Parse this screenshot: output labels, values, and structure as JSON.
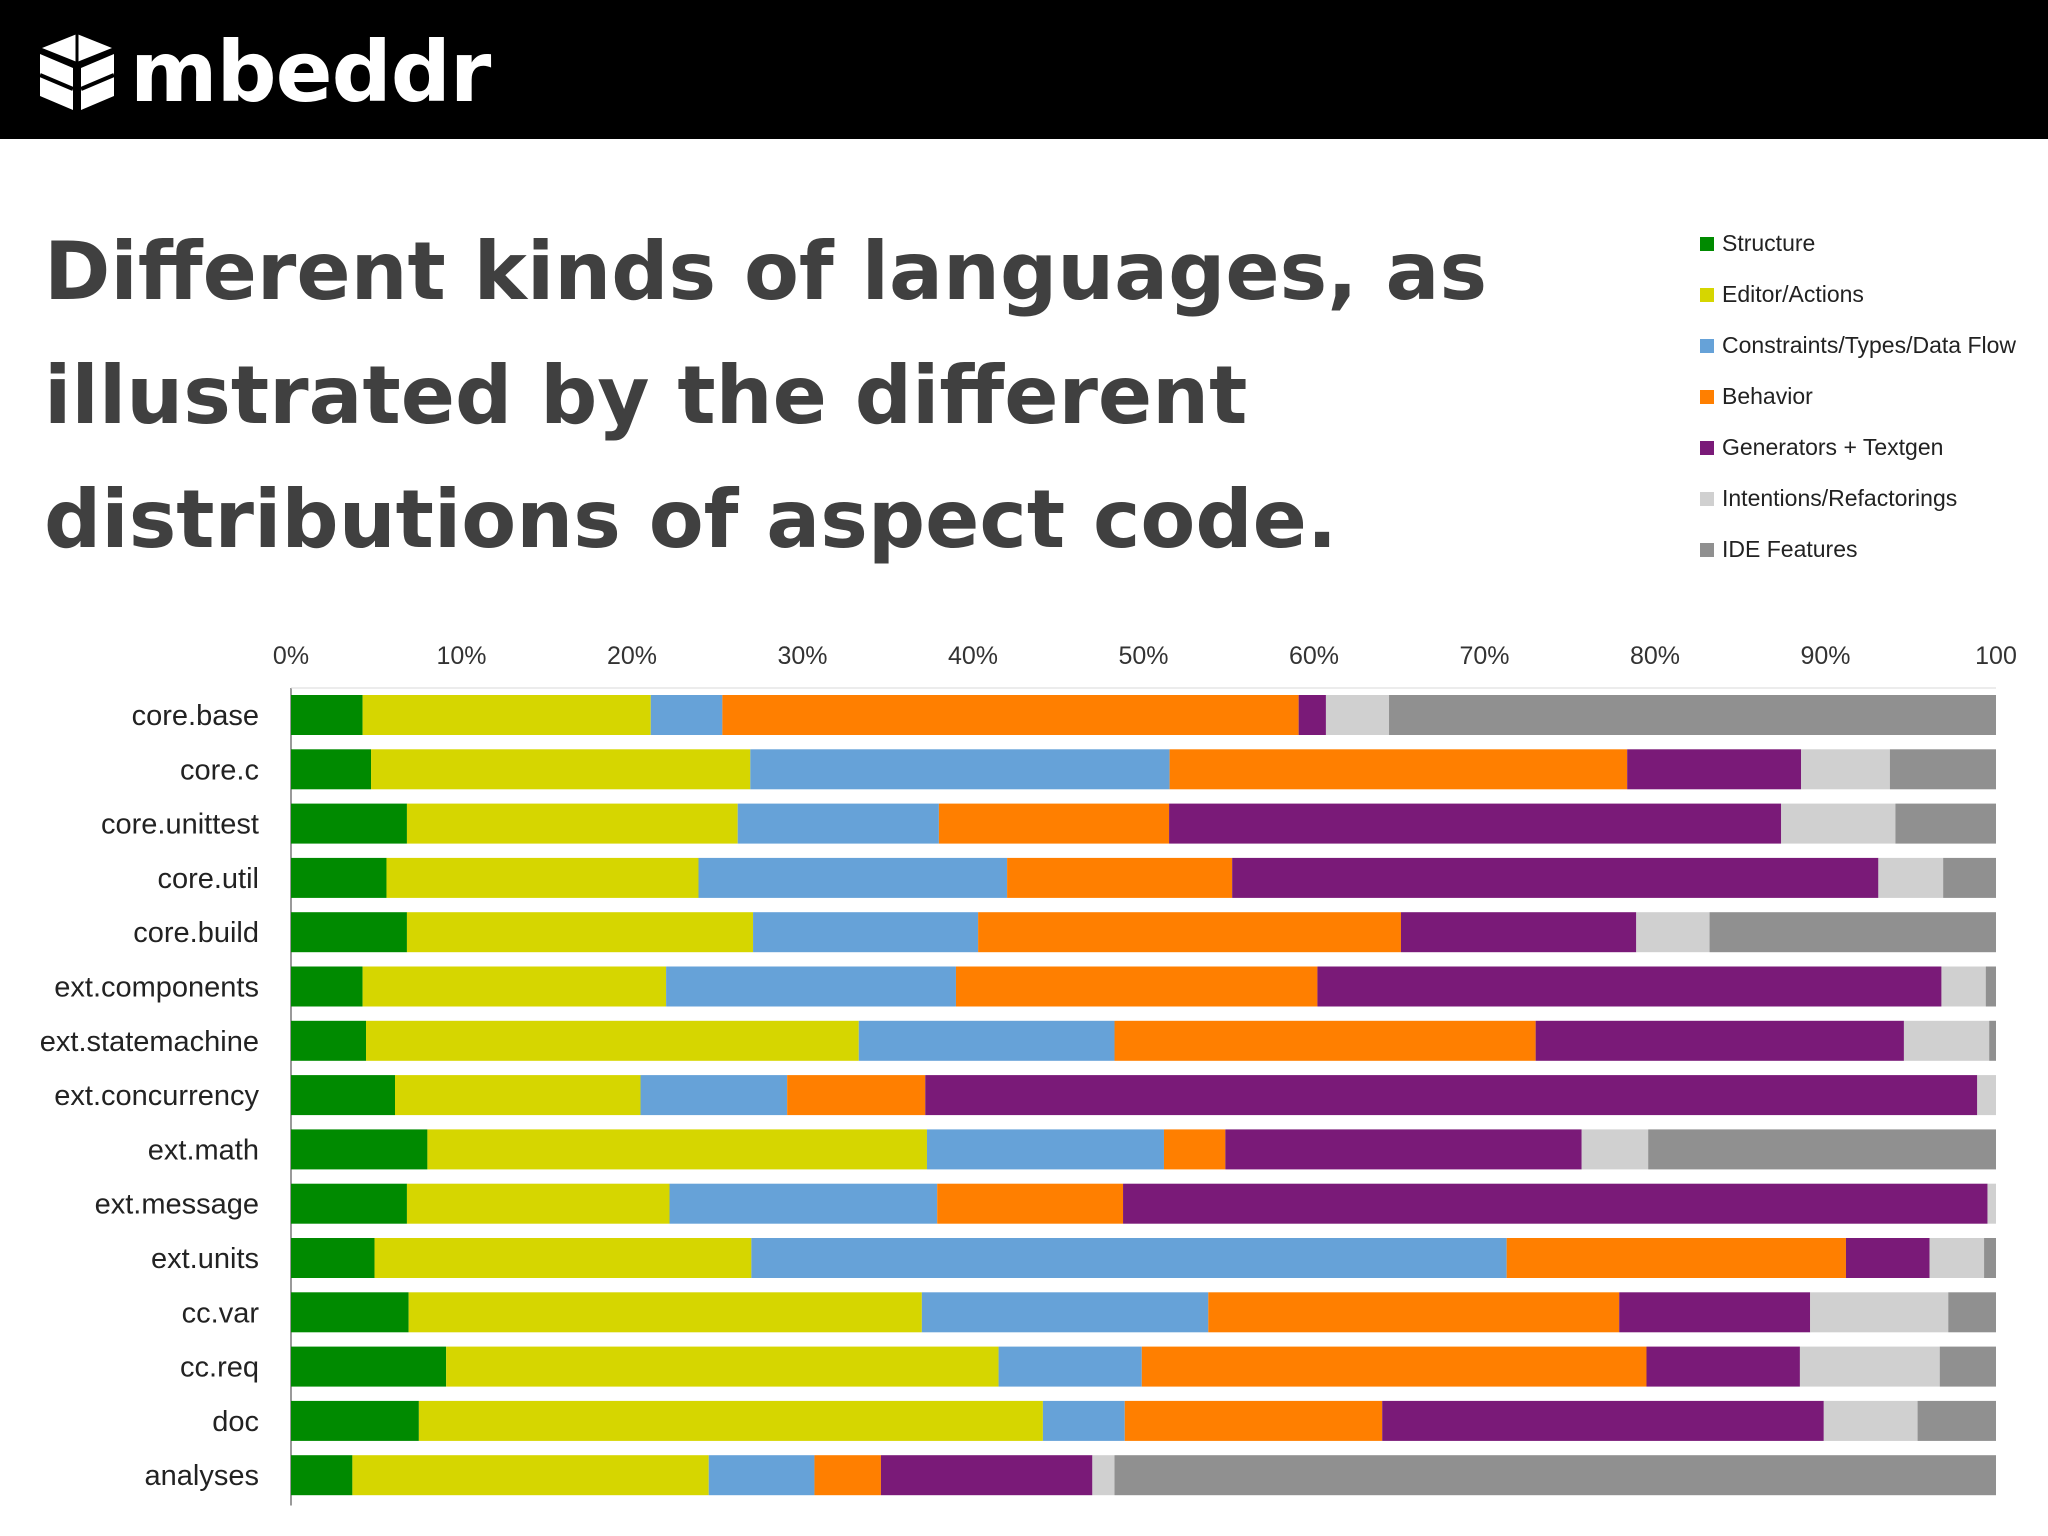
{
  "header": {
    "logo_text": "mbeddr",
    "logo_icon": "mbeddr-cube-logo"
  },
  "title": "Different kinds of languages, as\nillustrated by the different\ndistributions of aspect code.",
  "chart_data": {
    "type": "bar",
    "orientation": "horizontal",
    "stacked": "percent",
    "categories": [
      "core.base",
      "core.c",
      "core.unittest",
      "core.util",
      "core.build",
      "ext.components",
      "ext.statemachine",
      "ext.concurrency",
      "ext.math",
      "ext.message",
      "ext.units",
      "cc.var",
      "cc.req",
      "doc",
      "analyses"
    ],
    "x_ticks": [
      "0%",
      "10%",
      "20%",
      "30%",
      "40%",
      "50%",
      "60%",
      "70%",
      "80%",
      "90%",
      "100"
    ],
    "xlim": [
      0,
      100
    ],
    "legend_position": "top-right",
    "grid": false,
    "series": [
      {
        "name": "Structure",
        "color": "#008a00",
        "values": [
          4.2,
          4.6,
          6.8,
          5.6,
          6.8,
          4.2,
          4.4,
          6.1,
          8.0,
          6.8,
          4.9,
          6.9,
          9.1,
          7.5,
          3.6
        ]
      },
      {
        "name": "Editor/Actions",
        "color": "#d6d600",
        "values": [
          16.9,
          21.8,
          19.4,
          18.3,
          20.3,
          17.8,
          28.9,
          14.4,
          29.3,
          15.4,
          22.1,
          30.1,
          32.4,
          36.6,
          20.9
        ]
      },
      {
        "name": "Constraints/Types/Data Flow",
        "color": "#66a2d8",
        "values": [
          4.2,
          24.1,
          11.8,
          18.1,
          13.2,
          17.0,
          15.0,
          8.6,
          13.9,
          15.7,
          44.3,
          16.8,
          8.4,
          4.8,
          6.2
        ]
      },
      {
        "name": "Behavior",
        "color": "#ff7f00",
        "values": [
          33.8,
          26.3,
          13.5,
          13.2,
          24.8,
          21.2,
          24.7,
          8.1,
          3.6,
          10.9,
          19.9,
          24.1,
          29.6,
          15.1,
          3.9
        ]
      },
      {
        "name": "Generators + Textgen",
        "color": "#7a1a78",
        "values": [
          1.6,
          10.0,
          35.9,
          37.9,
          13.8,
          36.6,
          21.6,
          61.7,
          20.9,
          50.7,
          4.9,
          11.2,
          9.0,
          25.9,
          12.4
        ]
      },
      {
        "name": "Intentions/Refactorings",
        "color": "#d0d0d0",
        "values": [
          3.7,
          5.1,
          6.7,
          3.8,
          4.3,
          2.6,
          5.0,
          1.1,
          3.9,
          0.5,
          3.2,
          8.1,
          8.2,
          5.5,
          1.3
        ]
      },
      {
        "name": "IDE Features",
        "color": "#909090",
        "values": [
          35.6,
          6.1,
          5.9,
          3.1,
          16.8,
          0.6,
          0.4,
          0.0,
          20.4,
          0.0,
          0.7,
          2.8,
          3.3,
          4.6,
          51.7
        ]
      }
    ]
  }
}
